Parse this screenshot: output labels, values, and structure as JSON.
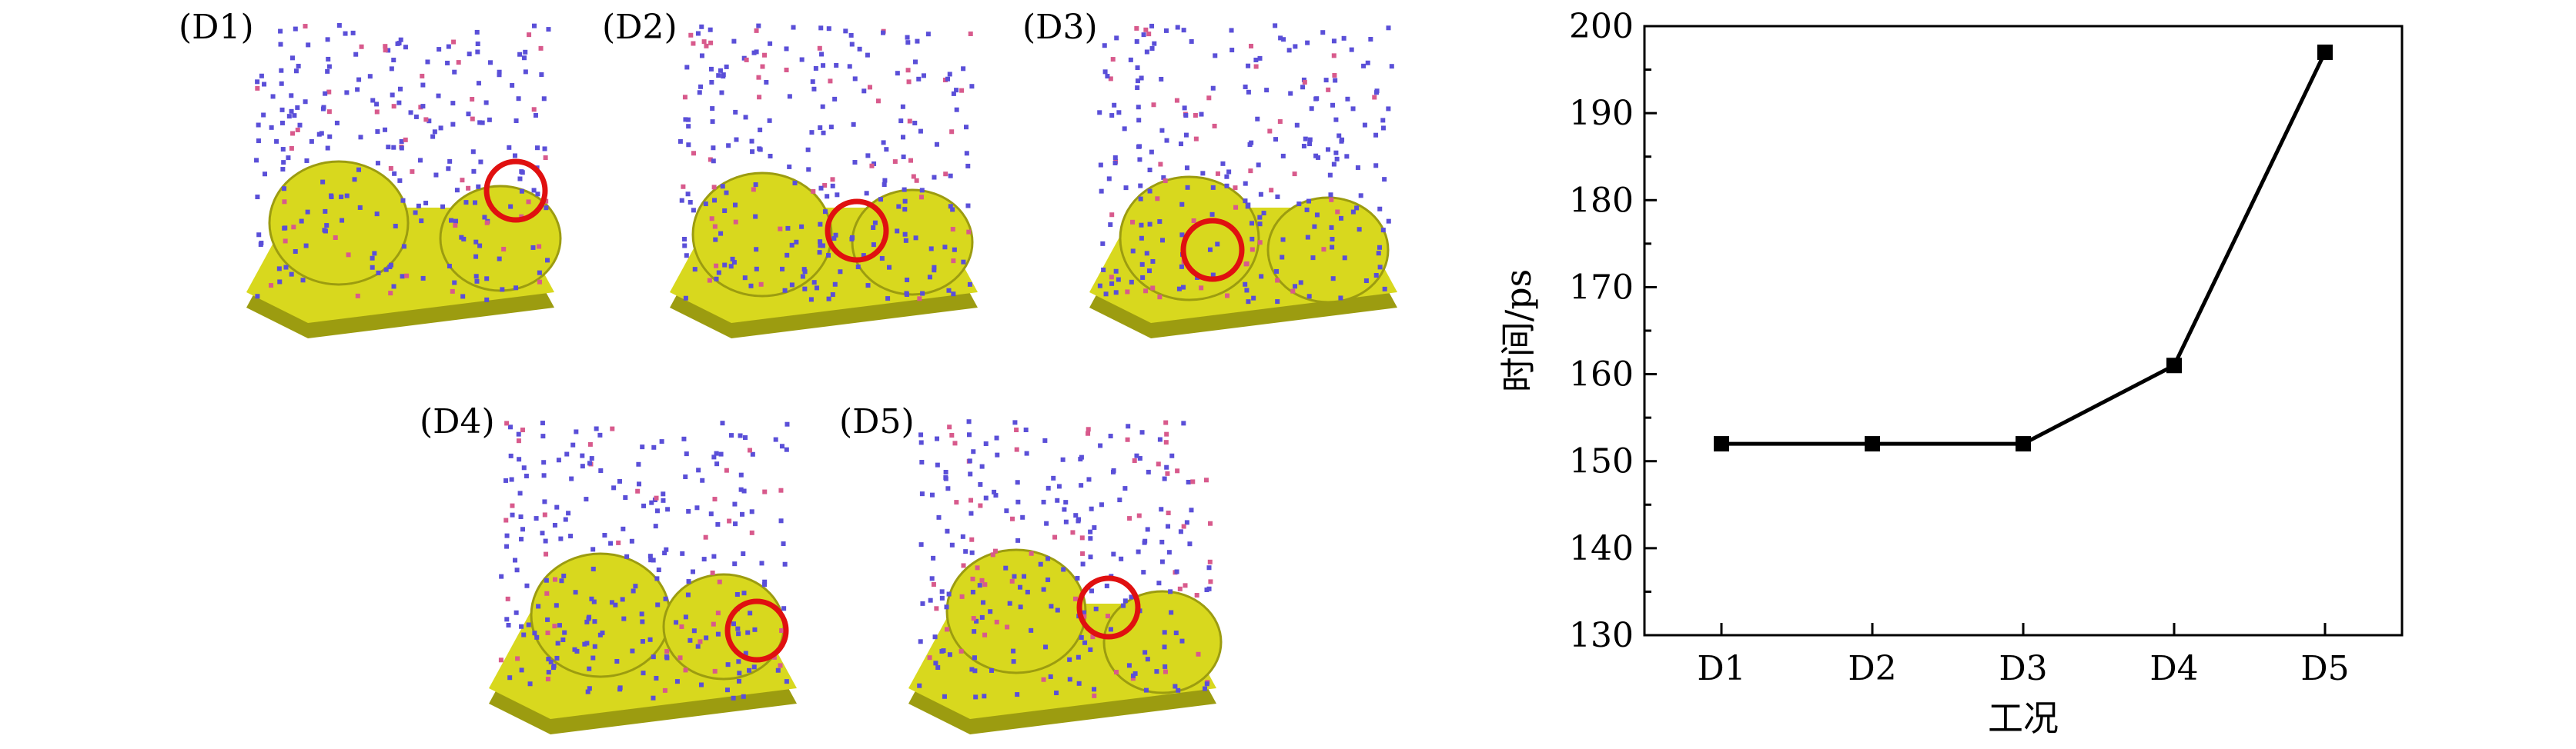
{
  "panels": [
    {
      "label": "(D1)"
    },
    {
      "label": "(D2)"
    },
    {
      "label": "(D3)"
    },
    {
      "label": "(D4)"
    },
    {
      "label": "(D5)"
    }
  ],
  "colors": {
    "substrate": "#d8d81e",
    "substrate_dark": "#9c9c10",
    "particle_blue": "#5a4fd8",
    "particle_red": "#d85a8c",
    "highlight_circle": "#e01010",
    "line": "#000000"
  },
  "chart_data": {
    "type": "line",
    "categories": [
      "D1",
      "D2",
      "D3",
      "D4",
      "D5"
    ],
    "series": [
      {
        "values": [
          152,
          152,
          152,
          161,
          197
        ]
      }
    ],
    "xlabel": "工况",
    "ylabel": "时间/ps",
    "ylim": [
      130,
      200
    ],
    "yticks": [
      "130",
      "140",
      "150",
      "160",
      "170",
      "180",
      "190",
      "200"
    ],
    "marker": "square",
    "grid": false
  }
}
